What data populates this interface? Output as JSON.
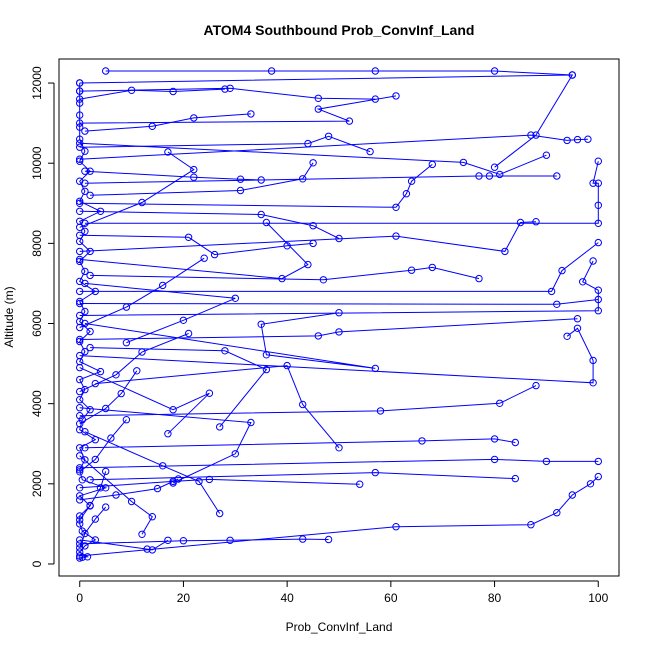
{
  "chart_data": {
    "type": "line",
    "title": "ATOM4 Southbound Prob_ConvInf_Land",
    "xlabel": "Prob_ConvInf_Land",
    "ylabel": "Altitude (m)",
    "xlim": [
      -4,
      104
    ],
    "ylim": [
      -300,
      12600
    ],
    "xticks": [
      0,
      20,
      40,
      60,
      80,
      100
    ],
    "yticks": [
      0,
      2000,
      4000,
      6000,
      8000,
      10000,
      12000
    ],
    "grid": false,
    "marker": "open-circle",
    "color": "#0000ff",
    "series": [
      {
        "values": [
          [
            0,
            150
          ],
          [
            0.5,
            170
          ],
          [
            1.5,
            180
          ],
          [
            0,
            300
          ],
          [
            1,
            450
          ],
          [
            3,
            600
          ],
          [
            0.5,
            820
          ],
          [
            0,
            1000
          ],
          [
            0,
            1200
          ],
          [
            2,
            1450
          ],
          [
            0,
            1700
          ],
          [
            5,
            1900
          ],
          [
            0.5,
            2100
          ],
          [
            0,
            2350
          ],
          [
            1,
            2600
          ],
          [
            0,
            2900
          ],
          [
            3,
            3100
          ],
          [
            0,
            3350
          ],
          [
            0.5,
            3600
          ],
          [
            2,
            3850
          ],
          [
            0,
            4100
          ],
          [
            1,
            4350
          ],
          [
            0,
            4600
          ],
          [
            4,
            4800
          ],
          [
            0,
            5050
          ],
          [
            1,
            5300
          ],
          [
            0,
            5550
          ],
          [
            2,
            5800
          ],
          [
            0,
            6050
          ],
          [
            1,
            6300
          ],
          [
            0,
            6550
          ],
          [
            3,
            6800
          ],
          [
            0,
            7050
          ],
          [
            1,
            7300
          ],
          [
            0,
            7550
          ],
          [
            2,
            7800
          ],
          [
            0,
            8050
          ],
          [
            1,
            8300
          ],
          [
            0,
            8550
          ],
          [
            4,
            8800
          ],
          [
            0,
            9050
          ],
          [
            1,
            9300
          ],
          [
            0,
            9550
          ],
          [
            2,
            9800
          ],
          [
            0,
            10050
          ],
          [
            1,
            10300
          ],
          [
            0,
            10600
          ],
          [
            0,
            10900
          ],
          [
            0,
            11200
          ],
          [
            0,
            11500
          ],
          [
            0,
            11800
          ],
          [
            0,
            12000
          ]
        ]
      },
      {
        "values": [
          [
            0,
            200
          ],
          [
            61,
            930
          ],
          [
            87,
            980
          ],
          [
            92,
            1280
          ],
          [
            95,
            1720
          ],
          [
            98.5,
            2000
          ],
          [
            100,
            2180
          ]
        ]
      },
      {
        "values": [
          [
            0,
            500
          ],
          [
            20,
            580
          ],
          [
            29,
            590
          ],
          [
            43,
            620
          ],
          [
            48,
            610
          ]
        ]
      },
      {
        "values": [
          [
            2,
            2100
          ],
          [
            57,
            2280
          ],
          [
            84,
            2130
          ]
        ]
      },
      {
        "values": [
          [
            0,
            2400
          ],
          [
            80,
            2610
          ],
          [
            90,
            2560
          ],
          [
            100,
            2560
          ]
        ]
      },
      {
        "values": [
          [
            1,
            2900
          ],
          [
            66,
            3070
          ],
          [
            80,
            3120
          ],
          [
            84,
            3030
          ]
        ]
      },
      {
        "values": [
          [
            0,
            3700
          ],
          [
            58,
            3820
          ],
          [
            81,
            4010
          ],
          [
            88,
            4450
          ]
        ]
      },
      {
        "values": [
          [
            3,
            4500
          ],
          [
            40,
            4950
          ],
          [
            43,
            3980
          ],
          [
            50,
            2900
          ]
        ]
      },
      {
        "values": [
          [
            0,
            5200
          ],
          [
            99,
            4520
          ],
          [
            99,
            5080
          ],
          [
            96,
            5880
          ],
          [
            94,
            5680
          ]
        ]
      },
      {
        "values": [
          [
            1,
            6000
          ],
          [
            57,
            4880
          ],
          [
            36,
            5220
          ],
          [
            35,
            5980
          ],
          [
            50,
            6270
          ]
        ]
      },
      {
        "values": [
          [
            0,
            6200
          ],
          [
            100,
            6320
          ],
          [
            100,
            6830
          ],
          [
            97,
            7040
          ],
          [
            99,
            7560
          ]
        ]
      },
      {
        "values": [
          [
            0,
            6800
          ],
          [
            91,
            6800
          ],
          [
            93,
            7320
          ],
          [
            100,
            8020
          ]
        ]
      },
      {
        "values": [
          [
            2,
            7200
          ],
          [
            47,
            7090
          ],
          [
            64,
            7330
          ],
          [
            68,
            7400
          ],
          [
            77,
            7120
          ]
        ]
      },
      {
        "values": [
          [
            0,
            7800
          ],
          [
            61,
            8180
          ],
          [
            82,
            7800
          ],
          [
            85,
            8520
          ],
          [
            88,
            8540
          ]
        ]
      },
      {
        "values": [
          [
            1,
            8500
          ],
          [
            100,
            8500
          ],
          [
            100,
            8950
          ],
          [
            100,
            9500
          ],
          [
            99,
            9500
          ],
          [
            100,
            10050
          ]
        ]
      },
      {
        "values": [
          [
            0,
            9000
          ],
          [
            61,
            8900
          ],
          [
            63,
            9240
          ],
          [
            64,
            9550
          ],
          [
            68,
            9970
          ]
        ]
      },
      {
        "values": [
          [
            1,
            9500
          ],
          [
            77,
            9680
          ],
          [
            79,
            9680
          ],
          [
            92,
            9680
          ]
        ]
      },
      {
        "values": [
          [
            0,
            10100
          ],
          [
            87,
            10700
          ],
          [
            94,
            10570
          ],
          [
            96,
            10590
          ],
          [
            98,
            10600
          ]
        ]
      },
      {
        "values": [
          [
            0,
            10500
          ],
          [
            74,
            10020
          ],
          [
            81,
            9720
          ],
          [
            90,
            10200
          ]
        ]
      },
      {
        "values": [
          [
            0,
            11000
          ],
          [
            52,
            11050
          ],
          [
            46,
            11350
          ],
          [
            61,
            11680
          ]
        ]
      },
      {
        "values": [
          [
            0,
            11800
          ],
          [
            29,
            11870
          ],
          [
            46,
            11620
          ],
          [
            57,
            11600
          ]
        ]
      },
      {
        "values": [
          [
            5,
            12300
          ],
          [
            37,
            12300
          ],
          [
            57,
            12300
          ],
          [
            80,
            12300
          ],
          [
            95,
            12200
          ]
        ]
      },
      {
        "values": [
          [
            0,
            12000
          ],
          [
            95,
            12200
          ],
          [
            88,
            10700
          ],
          [
            80,
            9900
          ]
        ]
      },
      {
        "values": [
          [
            1,
            9800
          ],
          [
            22,
            9650
          ],
          [
            31,
            9600
          ],
          [
            35,
            9580
          ]
        ]
      },
      {
        "values": [
          [
            0,
            8200
          ],
          [
            21,
            8150
          ],
          [
            26,
            7720
          ],
          [
            40,
            7940
          ],
          [
            45,
            8000
          ]
        ]
      },
      {
        "values": [
          [
            0,
            7600
          ],
          [
            39,
            7120
          ],
          [
            44,
            7470
          ],
          [
            36,
            8520
          ]
        ]
      },
      {
        "values": [
          [
            2,
            5400
          ],
          [
            28,
            5320
          ],
          [
            36,
            4850
          ],
          [
            27,
            3420
          ]
        ]
      },
      {
        "values": [
          [
            0,
            4900
          ],
          [
            18,
            3850
          ],
          [
            25,
            4260
          ],
          [
            17,
            3250
          ]
        ]
      },
      {
        "values": [
          [
            1,
            3300
          ],
          [
            16,
            2450
          ],
          [
            23,
            2060
          ],
          [
            27,
            1260
          ]
        ]
      },
      {
        "values": [
          [
            0,
            2700
          ],
          [
            10,
            1560
          ],
          [
            14,
            1180
          ],
          [
            12,
            740
          ]
        ]
      },
      {
        "values": [
          [
            0,
            1600
          ],
          [
            7,
            1720
          ],
          [
            15,
            1880
          ],
          [
            19,
            2120
          ]
        ]
      },
      {
        "values": [
          [
            0,
            1900
          ],
          [
            18,
            2060
          ],
          [
            25,
            2110
          ],
          [
            54,
            1990
          ]
        ]
      },
      {
        "values": [
          [
            0,
            600
          ],
          [
            13,
            370
          ],
          [
            14,
            350
          ],
          [
            17,
            590
          ]
        ]
      },
      {
        "values": [
          [
            0,
            3900
          ],
          [
            33,
            3530
          ],
          [
            30,
            2750
          ],
          [
            18,
            2020
          ]
        ]
      },
      {
        "values": [
          [
            0,
            5600
          ],
          [
            46,
            5690
          ],
          [
            50,
            5790
          ],
          [
            96,
            6120
          ]
        ]
      },
      {
        "values": [
          [
            0,
            6500
          ],
          [
            92,
            6480
          ],
          [
            100,
            6600
          ]
        ]
      },
      {
        "values": [
          [
            1,
            7000
          ],
          [
            30,
            6630
          ],
          [
            20,
            6080
          ],
          [
            9,
            5520
          ]
        ]
      },
      {
        "values": [
          [
            0,
            8800
          ],
          [
            35,
            8720
          ],
          [
            45,
            8440
          ],
          [
            50,
            8120
          ]
        ]
      },
      {
        "values": [
          [
            2,
            9200
          ],
          [
            31,
            9320
          ],
          [
            43,
            9610
          ],
          [
            45,
            10010
          ]
        ]
      },
      {
        "values": [
          [
            0,
            10400
          ],
          [
            44,
            10490
          ],
          [
            48,
            10670
          ],
          [
            56,
            10290
          ]
        ]
      },
      {
        "values": [
          [
            1,
            10800
          ],
          [
            14,
            10920
          ],
          [
            22,
            11130
          ],
          [
            33,
            11230
          ]
        ]
      },
      {
        "values": [
          [
            0,
            11600
          ],
          [
            10,
            11820
          ],
          [
            18,
            11790
          ],
          [
            28,
            11850
          ]
        ]
      },
      {
        "values": [
          [
            0,
            8400
          ],
          [
            12,
            9020
          ],
          [
            22,
            9840
          ],
          [
            17,
            10280
          ]
        ]
      },
      {
        "values": [
          [
            0,
            5900
          ],
          [
            9,
            6410
          ],
          [
            16,
            6950
          ],
          [
            24,
            7630
          ]
        ]
      },
      {
        "values": [
          [
            0,
            4300
          ],
          [
            7,
            4720
          ],
          [
            12,
            5290
          ],
          [
            21,
            5750
          ]
        ]
      },
      {
        "values": [
          [
            0,
            3500
          ],
          [
            5,
            3880
          ],
          [
            8,
            4250
          ],
          [
            11,
            4820
          ]
        ]
      },
      {
        "values": [
          [
            0,
            2300
          ],
          [
            3,
            2610
          ],
          [
            6,
            3140
          ],
          [
            9,
            3600
          ]
        ]
      },
      {
        "values": [
          [
            0,
            1100
          ],
          [
            2,
            1460
          ],
          [
            4,
            1900
          ],
          [
            5,
            2310
          ]
        ]
      },
      {
        "values": [
          [
            0,
            400
          ],
          [
            1,
            760
          ],
          [
            3,
            1120
          ],
          [
            5,
            1420
          ]
        ]
      }
    ]
  }
}
